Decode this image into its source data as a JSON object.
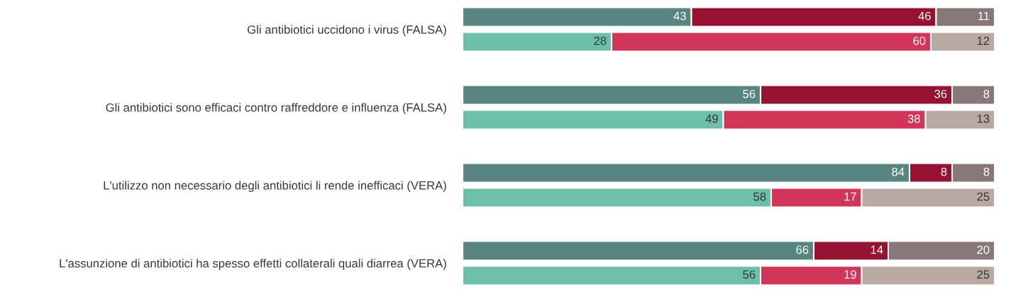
{
  "chart_data": [
    {
      "type": "bar",
      "orientation": "horizontal",
      "stacked": true,
      "data_labels": true,
      "tick_labels": "y",
      "categories": [
        "Gli antibiotici uccidono i virus (FALSA)",
        "Gli antibiotici sono efficaci contro raffreddore e influenza (FALSA)",
        "L'utilizzo non necessario degli antibiotici li rende inefficaci (VERA)",
        "L'assunzione di antibiotici ha spesso effetti collaterali quali diarrea (VERA)"
      ],
      "series": [
        {
          "color": "#588580",
          "values": [
            43,
            56,
            84,
            66
          ]
        },
        {
          "color": "#951232",
          "values": [
            46,
            36,
            8,
            14
          ]
        },
        {
          "color": "#887778",
          "values": [
            11,
            8,
            8,
            20
          ]
        }
      ]
    },
    {
      "type": "bar",
      "orientation": "horizontal",
      "stacked": true,
      "data_labels": true,
      "categories": [
        null,
        null,
        null,
        null
      ],
      "series": [
        {
          "color": "#6dbfa8",
          "values": [
            28,
            49,
            58,
            56
          ]
        },
        {
          "color": "#d13558",
          "values": [
            60,
            38,
            17,
            19
          ]
        },
        {
          "color": "#b8aaa3",
          "values": [
            12,
            13,
            25,
            25
          ]
        }
      ]
    }
  ]
}
